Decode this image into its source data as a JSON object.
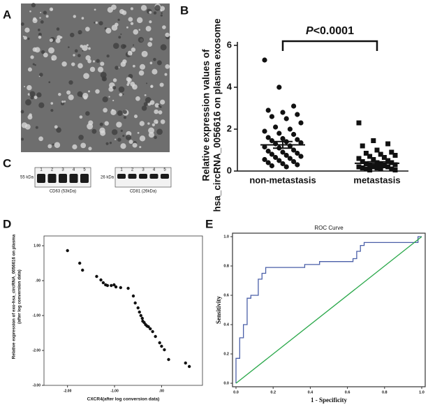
{
  "panels": {
    "a": "A",
    "b": "B",
    "c": "C",
    "d": "D",
    "e": "E"
  },
  "blots": [
    {
      "marker": "55 kDa",
      "lanes": [
        "1",
        "2",
        "3",
        "4",
        "5"
      ],
      "label": "CD63 (53kDa)"
    },
    {
      "marker": "26 kDa",
      "lanes": [
        "1",
        "2",
        "3",
        "4",
        "5"
      ],
      "label": "CD81 (26kDa)"
    }
  ],
  "chart_data": [
    {
      "type": "strip",
      "annotation": [
        "P",
        "<0.0001"
      ],
      "ylabel": [
        "Relative expression values of",
        "hsa_circRNA_0056616 on plasma exosome"
      ],
      "categories": [
        "non-metastasis",
        "metastasis"
      ],
      "series": [
        {
          "marker": "circle",
          "color": "#111111",
          "values": [
            5.3,
            4.0,
            3.1,
            2.9,
            2.8,
            2.7,
            2.6,
            2.5,
            2.3,
            2.1,
            2.0,
            1.9,
            1.8,
            1.75,
            1.6,
            1.55,
            1.5,
            1.45,
            1.4,
            1.35,
            1.3,
            1.2,
            1.15,
            1.1,
            1.0,
            0.95,
            0.9,
            0.85,
            0.8,
            0.75,
            0.7,
            0.65,
            0.6,
            0.55,
            0.5,
            0.45,
            0.4,
            0.35,
            0.3,
            0.25,
            0.2
          ]
        },
        {
          "marker": "square",
          "color": "#111111",
          "values": [
            2.3,
            1.45,
            1.3,
            1.2,
            1.0,
            0.9,
            0.85,
            0.8,
            0.75,
            0.7,
            0.65,
            0.6,
            0.55,
            0.5,
            0.45,
            0.4,
            0.4,
            0.35,
            0.3,
            0.3,
            0.25,
            0.25,
            0.2,
            0.2,
            0.2,
            0.15,
            0.15,
            0.1,
            0.1,
            0.1,
            0.05,
            0.05
          ]
        }
      ],
      "means": [
        1.25,
        0.37
      ],
      "sem": [
        0.16,
        0.07
      ],
      "ylim": [
        0,
        6
      ],
      "yticks": [
        0,
        2,
        4,
        6
      ]
    },
    {
      "type": "scatter",
      "color": "#111111",
      "ylabel": [
        "Relative expression of exo-hsa_circRNA_0056616 on plasma",
        "(after log conversion data)"
      ],
      "xlabel": "CXCR4(after log conversion data)",
      "x": [
        -2.0,
        -1.74,
        -1.68,
        -1.38,
        -1.29,
        -1.24,
        -1.19,
        -1.15,
        -1.07,
        -1.01,
        -0.97,
        -0.87,
        -0.71,
        -0.6,
        -0.56,
        -0.5,
        -0.47,
        -0.44,
        -0.41,
        -0.4,
        -0.37,
        -0.34,
        -0.31,
        -0.28,
        -0.24,
        -0.19,
        -0.13,
        -0.04,
        0.0,
        0.06,
        0.15,
        0.51,
        0.59
      ],
      "values": [
        0.86,
        0.5,
        0.3,
        0.12,
        0.02,
        -0.06,
        -0.12,
        -0.14,
        -0.14,
        -0.12,
        -0.18,
        -0.2,
        -0.22,
        -0.44,
        -0.64,
        -0.78,
        -0.9,
        -1.0,
        -1.08,
        -1.16,
        -1.2,
        -1.26,
        -1.3,
        -1.32,
        -1.38,
        -1.46,
        -1.6,
        -1.78,
        -1.88,
        -1.98,
        -2.26,
        -2.36,
        -2.46
      ],
      "xlim": [
        -2.5,
        0.87
      ],
      "ylim": [
        -3,
        1.28
      ],
      "xticks": [
        {
          "value": -2,
          "label": "-2.00"
        },
        {
          "value": -1,
          "label": "-1.00"
        },
        {
          "value": 0,
          "label": ".00"
        }
      ],
      "yticks": [
        {
          "value": 1,
          "label": "1.00"
        },
        {
          "value": 0,
          "label": ".00"
        },
        {
          "value": -1,
          "label": "-1.00"
        },
        {
          "value": -2,
          "label": "-2.00"
        },
        {
          "value": -3,
          "label": "-3.00"
        }
      ]
    },
    {
      "type": "line",
      "title": "ROC Curve",
      "xlabel": "1 - Specificity",
      "ylabel": "Sensitivity",
      "series": [
        {
          "color": "#4a5fa8",
          "x": [
            0,
            0,
            0.02,
            0.02,
            0.04,
            0.04,
            0.06,
            0.06,
            0.08,
            0.08,
            0.12,
            0.12,
            0.14,
            0.14,
            0.16,
            0.16,
            0.37,
            0.37,
            0.45,
            0.45,
            0.63,
            0.63,
            0.65,
            0.65,
            0.67,
            0.67,
            0.69,
            0.69,
            0.98,
            0.98,
            1
          ],
          "values": [
            0,
            0.17,
            0.17,
            0.31,
            0.31,
            0.4,
            0.4,
            0.58,
            0.58,
            0.6,
            0.6,
            0.71,
            0.71,
            0.75,
            0.75,
            0.79,
            0.79,
            0.81,
            0.81,
            0.83,
            0.83,
            0.85,
            0.85,
            0.9,
            0.9,
            0.94,
            0.94,
            0.96,
            0.96,
            1,
            1
          ]
        },
        {
          "color": "#2aa84a",
          "x": [
            0,
            1
          ],
          "values": [
            0,
            1
          ]
        }
      ],
      "xlim": [
        0,
        1
      ],
      "ylim": [
        0,
        1
      ],
      "xticks": [
        {
          "value": 0,
          "label": "0.0"
        },
        {
          "value": 0.2,
          "label": "0.2"
        },
        {
          "value": 0.4,
          "label": "0.4"
        },
        {
          "value": 0.6,
          "label": "0.6"
        },
        {
          "value": 0.8,
          "label": "0.8"
        },
        {
          "value": 1,
          "label": "1.0"
        }
      ],
      "yticks": [
        {
          "value": 0,
          "label": "0.0"
        },
        {
          "value": 0.2,
          "label": "0.2"
        },
        {
          "value": 0.4,
          "label": "0.4"
        },
        {
          "value": 0.6,
          "label": "0.6"
        },
        {
          "value": 0.8,
          "label": "0.8"
        },
        {
          "value": 1,
          "label": "1.0"
        }
      ]
    }
  ]
}
